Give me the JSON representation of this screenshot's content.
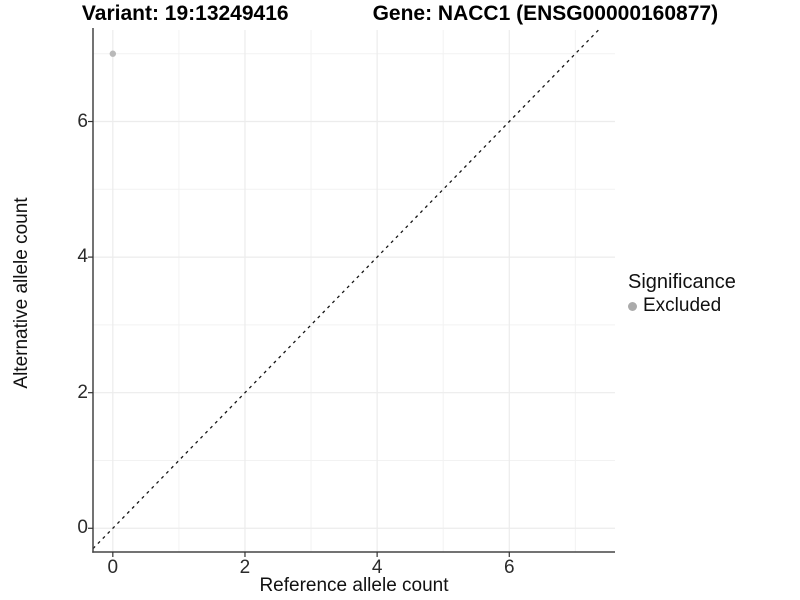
{
  "title": {
    "variant": "Variant: 19:13249416",
    "gene": "Gene: NACC1 (ENSG00000160877)"
  },
  "legend": {
    "title": "Significance",
    "items": [
      {
        "label": "Excluded",
        "color": "#ABABAB"
      }
    ]
  },
  "chart_data": {
    "type": "scatter",
    "title": "Variant: 19:13249416   Gene: NACC1 (ENSG00000160877)",
    "xlabel": "Reference allele count",
    "ylabel": "Alternative allele count",
    "xlim": [
      -0.3,
      7.6
    ],
    "ylim": [
      -0.35,
      7.35
    ],
    "x_major_ticks": [
      0,
      2,
      4,
      6
    ],
    "x_minor_gridlines": [
      1,
      3,
      5,
      7
    ],
    "y_major_ticks": [
      0,
      2,
      4,
      6
    ],
    "y_minor_gridlines": [
      1,
      3,
      5,
      7
    ],
    "grid": true,
    "legend_position": "right",
    "legend_title": "Significance",
    "series": [
      {
        "name": "Excluded",
        "color": "#B9B9B9",
        "points": [
          [
            0,
            7
          ]
        ]
      }
    ],
    "reference_line": {
      "type": "identity y=x",
      "style": "dashed",
      "color": "#151515"
    },
    "colors": {
      "major_grid": "#ECECEC",
      "minor_grid": "#F2F2F2",
      "axis_line": "#454545",
      "tick_mark": "#333333"
    }
  }
}
